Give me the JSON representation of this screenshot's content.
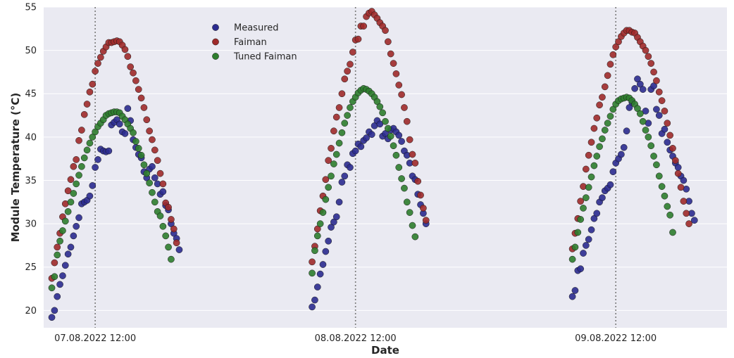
{
  "chart_data": {
    "type": "scatter",
    "title": "",
    "xlabel": "Date",
    "ylabel": "Module Temperature (°C)",
    "ylim": [
      18,
      55
    ],
    "xlim": [
      "2022-08-07 07:15",
      "2022-08-09 22:15"
    ],
    "yticks": [
      20,
      25,
      30,
      35,
      40,
      45,
      50,
      55
    ],
    "xticks": [
      {
        "value": "2022-08-07 12:00",
        "label": "07.08.2022 12:00"
      },
      {
        "value": "2022-08-08 12:00",
        "label": "08.08.2022 12:00"
      },
      {
        "value": "2022-08-09 12:00",
        "label": "09.08.2022 12:00"
      }
    ],
    "vlines": [
      "2022-08-07 12:00",
      "2022-08-08 12:00",
      "2022-08-09 12:00"
    ],
    "grid": true,
    "background": "#eaeaf2",
    "legend_position": "top-center",
    "days": [
      "2022-08-07",
      "2022-08-08",
      "2022-08-09"
    ],
    "times": [
      "08:00",
      "08:15",
      "08:30",
      "08:45",
      "09:00",
      "09:15",
      "09:30",
      "09:45",
      "10:00",
      "10:15",
      "10:30",
      "10:45",
      "11:00",
      "11:15",
      "11:30",
      "11:45",
      "12:00",
      "12:15",
      "12:30",
      "12:45",
      "13:00",
      "13:15",
      "13:30",
      "13:45",
      "14:00",
      "14:15",
      "14:30",
      "14:45",
      "15:00",
      "15:15",
      "15:30",
      "15:45",
      "16:00",
      "16:15",
      "16:30",
      "16:45",
      "17:00",
      "17:15",
      "17:30",
      "17:45",
      "18:00",
      "18:15",
      "18:30",
      "18:45",
      "19:00",
      "19:15",
      "19:30",
      "19:45"
    ],
    "series": [
      {
        "name": "Measured",
        "color": "#2b2b8f",
        "values": [
          [
            19.2,
            20.0,
            21.6,
            23.0,
            24.0,
            25.2,
            26.5,
            27.3,
            28.6,
            29.7,
            30.7,
            32.3,
            32.5,
            32.7,
            33.2,
            34.4,
            36.5,
            37.4,
            38.6,
            38.4,
            38.3,
            38.4,
            41.4,
            41.7,
            42.0,
            41.5,
            40.6,
            40.4,
            43.3,
            41.9,
            39.7,
            38.8,
            38.0,
            37.6,
            36.0,
            35.3,
            36.3,
            36.6,
            35.3,
            34.6,
            33.4,
            33.7,
            32.1,
            31.6,
            30.0,
            28.9,
            28.3,
            27.0
          ],
          [
            20.4,
            21.2,
            22.7,
            24.2,
            25.3,
            26.8,
            28.0,
            29.6,
            30.2,
            30.8,
            32.5,
            34.8,
            35.5,
            36.8,
            36.5,
            38.1,
            38.4,
            39.2,
            38.9,
            39.6,
            39.9,
            40.6,
            40.3,
            41.3,
            41.9,
            41.5,
            40.1,
            40.4,
            39.8,
            40.8,
            41.0,
            40.6,
            40.2,
            39.5,
            38.4,
            37.9,
            37.0,
            35.5,
            35.1,
            33.4,
            32.2,
            31.2,
            30.0
          ],
          [
            21.6,
            22.3,
            24.6,
            24.8,
            26.6,
            27.5,
            28.2,
            29.3,
            30.6,
            31.2,
            32.5,
            33.0,
            33.8,
            34.1,
            34.5,
            36.0,
            37.0,
            37.5,
            38.0,
            38.8,
            40.7,
            43.4,
            44.0,
            45.6,
            46.7,
            46.1,
            45.5,
            43.0,
            41.6,
            45.5,
            45.9,
            43.2,
            42.5,
            40.4,
            40.9,
            39.4,
            38.5,
            37.8,
            37.0,
            36.5,
            35.5,
            35.0,
            34.0,
            32.6,
            31.2,
            30.4
          ]
        ]
      },
      {
        "name": "Faiman",
        "color": "#9e2a2a",
        "values": [
          [
            23.7,
            25.5,
            27.3,
            28.9,
            30.8,
            32.3,
            33.8,
            35.1,
            36.6,
            37.4,
            39.6,
            40.8,
            42.6,
            43.8,
            45.2,
            46.1,
            47.6,
            48.5,
            49.2,
            49.9,
            50.4,
            50.9,
            50.9,
            51.0,
            51.1,
            51.0,
            50.6,
            50.1,
            49.3,
            48.1,
            47.4,
            46.5,
            45.5,
            44.5,
            43.4,
            42.0,
            40.7,
            39.7,
            38.5,
            37.3,
            35.8,
            34.6,
            32.4,
            31.9,
            30.5,
            29.4,
            27.8
          ],
          [
            25.6,
            27.4,
            29.4,
            31.5,
            33.2,
            35.1,
            37.3,
            38.7,
            40.7,
            42.3,
            43.4,
            45.0,
            46.7,
            47.6,
            48.4,
            49.8,
            51.2,
            51.3,
            52.8,
            52.8,
            53.9,
            54.3,
            54.5,
            54.1,
            53.7,
            53.2,
            52.8,
            52.3,
            51.0,
            49.6,
            48.5,
            47.3,
            46.0,
            44.9,
            43.4,
            41.8,
            39.7,
            38.0,
            37.0,
            34.9,
            33.3,
            31.8,
            30.4
          ],
          [
            27.1,
            28.9,
            30.6,
            32.6,
            34.3,
            36.3,
            37.9,
            39.4,
            41.0,
            42.2,
            43.7,
            44.6,
            45.8,
            47.1,
            48.4,
            49.5,
            50.4,
            51.0,
            51.6,
            52.0,
            52.3,
            52.3,
            52.1,
            52.0,
            51.5,
            51.0,
            50.5,
            50.0,
            49.3,
            48.5,
            47.5,
            46.5,
            45.2,
            44.2,
            43.0,
            41.6,
            40.2,
            38.7,
            37.3,
            35.8,
            34.2,
            32.6,
            31.2,
            30.0
          ]
        ]
      },
      {
        "name": "Tuned Faiman",
        "color": "#2e7d2e",
        "values": [
          [
            22.6,
            23.9,
            26.4,
            28.0,
            29.2,
            30.3,
            31.4,
            32.5,
            33.5,
            34.6,
            35.6,
            36.6,
            37.6,
            38.5,
            39.3,
            40.0,
            40.6,
            41.2,
            41.6,
            42.0,
            42.5,
            42.7,
            42.8,
            42.9,
            42.9,
            42.8,
            42.4,
            42.0,
            41.5,
            41.0,
            40.5,
            39.5,
            38.7,
            37.9,
            36.8,
            35.8,
            34.7,
            33.6,
            32.5,
            31.4,
            30.9,
            29.7,
            28.6,
            27.3,
            25.9
          ],
          [
            24.3,
            26.9,
            28.6,
            30.0,
            31.3,
            32.8,
            34.2,
            35.5,
            36.9,
            38.0,
            39.3,
            40.5,
            41.6,
            42.5,
            43.4,
            44.1,
            44.6,
            45.1,
            45.4,
            45.6,
            45.5,
            45.3,
            45.0,
            44.6,
            44.1,
            43.5,
            42.8,
            41.8,
            41.0,
            40.1,
            39.0,
            37.9,
            36.5,
            35.2,
            34.1,
            32.5,
            31.3,
            29.8,
            28.5
          ],
          [
            25.9,
            27.3,
            29.0,
            30.5,
            31.8,
            33.0,
            34.2,
            35.4,
            36.7,
            37.8,
            38.9,
            39.8,
            40.8,
            41.6,
            42.4,
            43.2,
            43.8,
            44.2,
            44.4,
            44.5,
            44.6,
            44.5,
            44.2,
            43.8,
            43.3,
            42.7,
            41.8,
            40.8,
            40.0,
            39.0,
            37.8,
            36.8,
            35.5,
            34.3,
            33.2,
            32.0,
            31.0,
            29.0
          ]
        ]
      }
    ]
  }
}
